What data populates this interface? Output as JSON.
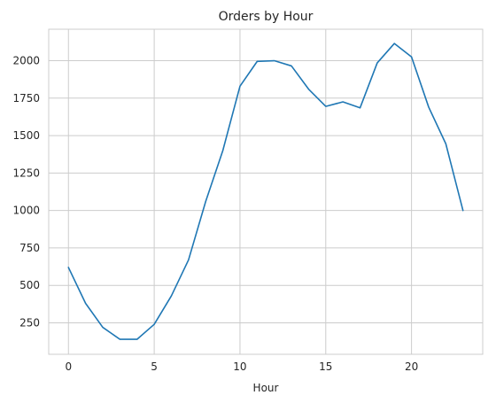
{
  "chart_data": {
    "type": "line",
    "title": "Orders by Hour",
    "xlabel": "Hour",
    "ylabel": "",
    "x": [
      0,
      1,
      2,
      3,
      4,
      5,
      6,
      7,
      8,
      9,
      10,
      11,
      12,
      13,
      14,
      15,
      16,
      17,
      18,
      19,
      20,
      21,
      22,
      23
    ],
    "series": [
      {
        "values": [
          620,
          380,
          220,
          140,
          140,
          240,
          430,
          670,
          1060,
          1400,
          1830,
          1995,
          2000,
          1965,
          1810,
          1695,
          1725,
          1685,
          1985,
          2115,
          2025,
          1690,
          1445,
          1000
        ],
        "color": "#1f77b4"
      }
    ],
    "xlim": [
      -1.15,
      24.15
    ],
    "ylim": [
      40,
      2210
    ],
    "xticks": [
      0,
      5,
      10,
      15,
      20
    ],
    "yticks": [
      250,
      500,
      750,
      1000,
      1250,
      1500,
      1750,
      2000
    ],
    "grid": true,
    "style": {
      "background": "#ffffff",
      "grid_color": "#cccccc",
      "text_color": "#262626"
    }
  }
}
